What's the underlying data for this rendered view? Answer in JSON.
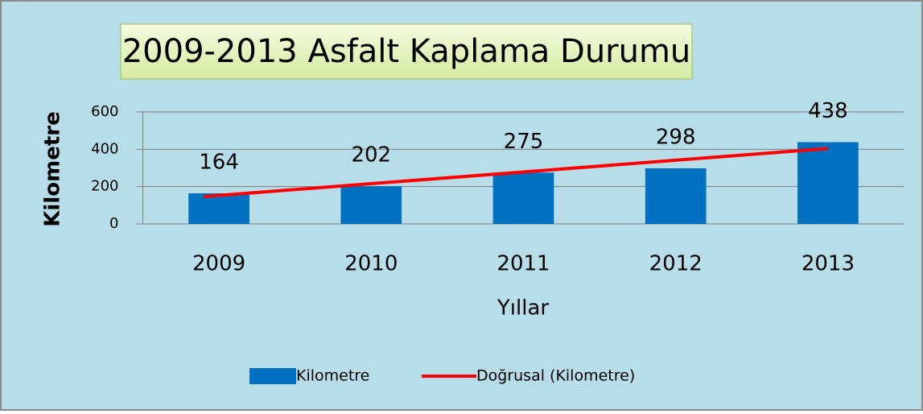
{
  "chart_data": {
    "type": "bar",
    "title": "2009-2013 Asfalt Kaplama Durumu",
    "x_label": "Yıllar",
    "y_label": "Kilometre",
    "categories": [
      "2009",
      "2010",
      "2011",
      "2012",
      "2013"
    ],
    "series": [
      {
        "name": "Kilometre",
        "type": "bar",
        "color": "#0070c0",
        "values": [
          164,
          202,
          275,
          298,
          438
        ]
      },
      {
        "name": "Doğrusal (Kilometre)",
        "type": "line",
        "color": "#ff0000",
        "values": [
          146.6,
          211,
          275.4,
          339.8,
          404.2
        ]
      }
    ],
    "ylim": [
      0,
      600
    ],
    "yticks": [
      0,
      200,
      400,
      600
    ],
    "grid": true,
    "legend": "bottom"
  }
}
